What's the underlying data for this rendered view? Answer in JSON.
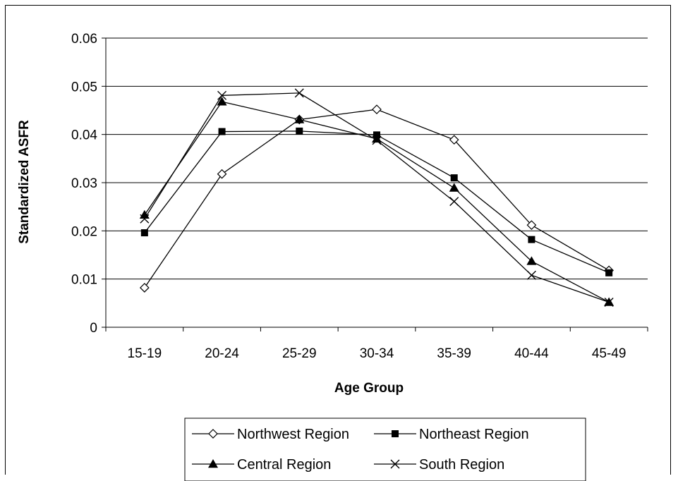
{
  "chart_data": {
    "type": "line",
    "title": "",
    "xlabel": "Age Group",
    "ylabel": "Standardized ASFR",
    "categories": [
      "15-19",
      "20-24",
      "25-29",
      "30-34",
      "35-39",
      "40-44",
      "45-49"
    ],
    "ylim": [
      0,
      0.06
    ],
    "yticks": [
      "0",
      "0.01",
      "0.02",
      "0.03",
      "0.04",
      "0.05",
      "0.06"
    ],
    "grid": "horizontal",
    "legend_position": "bottom",
    "series": [
      {
        "name": "Northwest Region",
        "marker": "diamond-open",
        "values": [
          0.0082,
          0.0318,
          0.0431,
          0.0452,
          0.0389,
          0.0212,
          0.0118
        ]
      },
      {
        "name": "Northeast Region",
        "marker": "square-filled",
        "values": [
          0.0196,
          0.0406,
          0.0407,
          0.0399,
          0.031,
          0.0182,
          0.0113
        ]
      },
      {
        "name": "Central Region",
        "marker": "triangle-filled",
        "values": [
          0.0233,
          0.0468,
          0.0431,
          0.0391,
          0.0289,
          0.0137,
          0.0052
        ]
      },
      {
        "name": "South Region",
        "marker": "x",
        "values": [
          0.0225,
          0.0481,
          0.0486,
          0.0388,
          0.0261,
          0.0108,
          0.0052
        ]
      }
    ]
  }
}
